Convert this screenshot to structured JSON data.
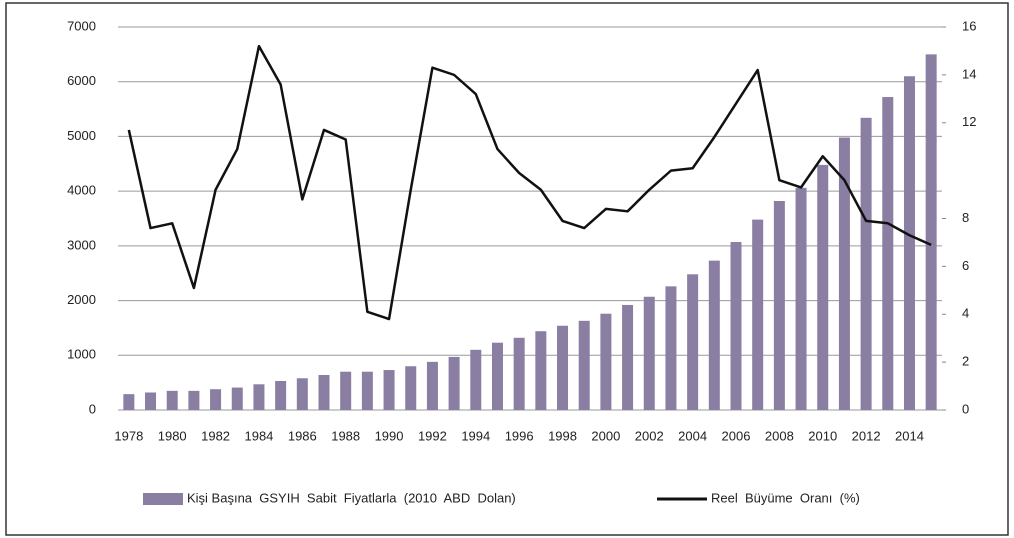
{
  "chart_data": {
    "type": "bar_line",
    "categories": [
      "1978",
      null,
      "1980",
      null,
      "1982",
      null,
      "1984",
      null,
      "1986",
      null,
      "1988",
      null,
      "1990",
      null,
      "1992",
      null,
      "1994",
      null,
      "1996",
      null,
      "1998",
      null,
      "2000",
      null,
      "2002",
      null,
      "2004",
      null,
      "2006",
      null,
      "2008",
      null,
      "2010",
      null,
      "2012",
      null,
      "2014",
      null
    ],
    "series": [
      {
        "name": "Kişi Başına  GSYIH  Sabit  Fiyatlarla  (2010  ABD  Dolan)",
        "type": "bar",
        "color": "#8a7fa3",
        "values": [
          290,
          320,
          350,
          350,
          380,
          410,
          470,
          530,
          580,
          640,
          700,
          700,
          730,
          800,
          880,
          970,
          1100,
          1230,
          1320,
          1440,
          1540,
          1630,
          1760,
          1920,
          2070,
          2260,
          2480,
          2730,
          3070,
          3480,
          3820,
          4060,
          4480,
          4980,
          5340,
          5720,
          6100,
          6500
        ]
      },
      {
        "name": "Reel  Büyüme  Oranı  (%)",
        "type": "line",
        "axis": "y2",
        "color": "#111111",
        "values": [
          11.7,
          7.6,
          7.8,
          5.1,
          9.2,
          10.9,
          15.2,
          13.6,
          8.8,
          11.7,
          11.3,
          4.1,
          3.8,
          9.2,
          14.3,
          14.0,
          13.2,
          10.9,
          9.9,
          9.2,
          7.9,
          7.6,
          8.4,
          8.3,
          9.2,
          10.0,
          10.1,
          11.4,
          12.8,
          14.2,
          9.6,
          9.3,
          10.6,
          9.6,
          7.9,
          7.8,
          7.3,
          6.9
        ]
      }
    ],
    "ylim": [
      0,
      7000
    ],
    "yticks": [
      0,
      1000,
      2000,
      3000,
      4000,
      5000,
      6000,
      7000
    ],
    "y2lim": [
      0,
      16
    ],
    "y2ticks": [
      0,
      2,
      4,
      6,
      8,
      12,
      14,
      16
    ],
    "grid": true,
    "legend": "bottom"
  }
}
